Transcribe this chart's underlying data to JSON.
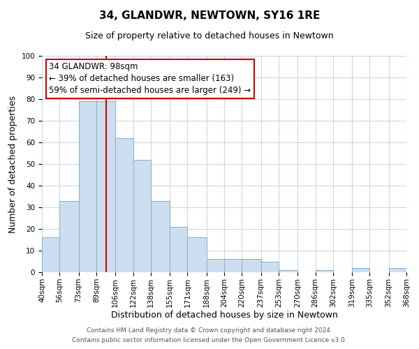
{
  "title": "34, GLANDWR, NEWTOWN, SY16 1RE",
  "subtitle": "Size of property relative to detached houses in Newtown",
  "xlabel": "Distribution of detached houses by size in Newtown",
  "ylabel": "Number of detached properties",
  "bin_edges": [
    40,
    56,
    73,
    89,
    106,
    122,
    138,
    155,
    171,
    188,
    204,
    220,
    237,
    253,
    270,
    286,
    302,
    319,
    335,
    352,
    368
  ],
  "bar_heights": [
    16,
    33,
    79,
    79,
    62,
    52,
    33,
    21,
    16,
    6,
    6,
    6,
    5,
    1,
    0,
    1,
    0,
    2,
    0,
    2
  ],
  "bar_color": "#ccdff0",
  "bar_edgecolor": "#85aece",
  "property_size": 98,
  "red_line_color": "#cc0000",
  "annotation_line1": "34 GLANDWR: 98sqm",
  "annotation_line2": "← 39% of detached houses are smaller (163)",
  "annotation_line3": "59% of semi-detached houses are larger (249) →",
  "annotation_box_edgecolor": "#cc0000",
  "annotation_box_facecolor": "#ffffff",
  "ylim": [
    0,
    100
  ],
  "yticks": [
    0,
    10,
    20,
    30,
    40,
    50,
    60,
    70,
    80,
    90,
    100
  ],
  "footnote1": "Contains HM Land Registry data © Crown copyright and database right 2024.",
  "footnote2": "Contains public sector information licensed under the Open Government Licence v3.0.",
  "background_color": "#ffffff",
  "grid_color": "#c8d8e8",
  "title_fontsize": 11,
  "subtitle_fontsize": 9,
  "axis_label_fontsize": 9,
  "tick_fontsize": 7.5,
  "annotation_fontsize": 8.5,
  "footnote_fontsize": 6.5
}
